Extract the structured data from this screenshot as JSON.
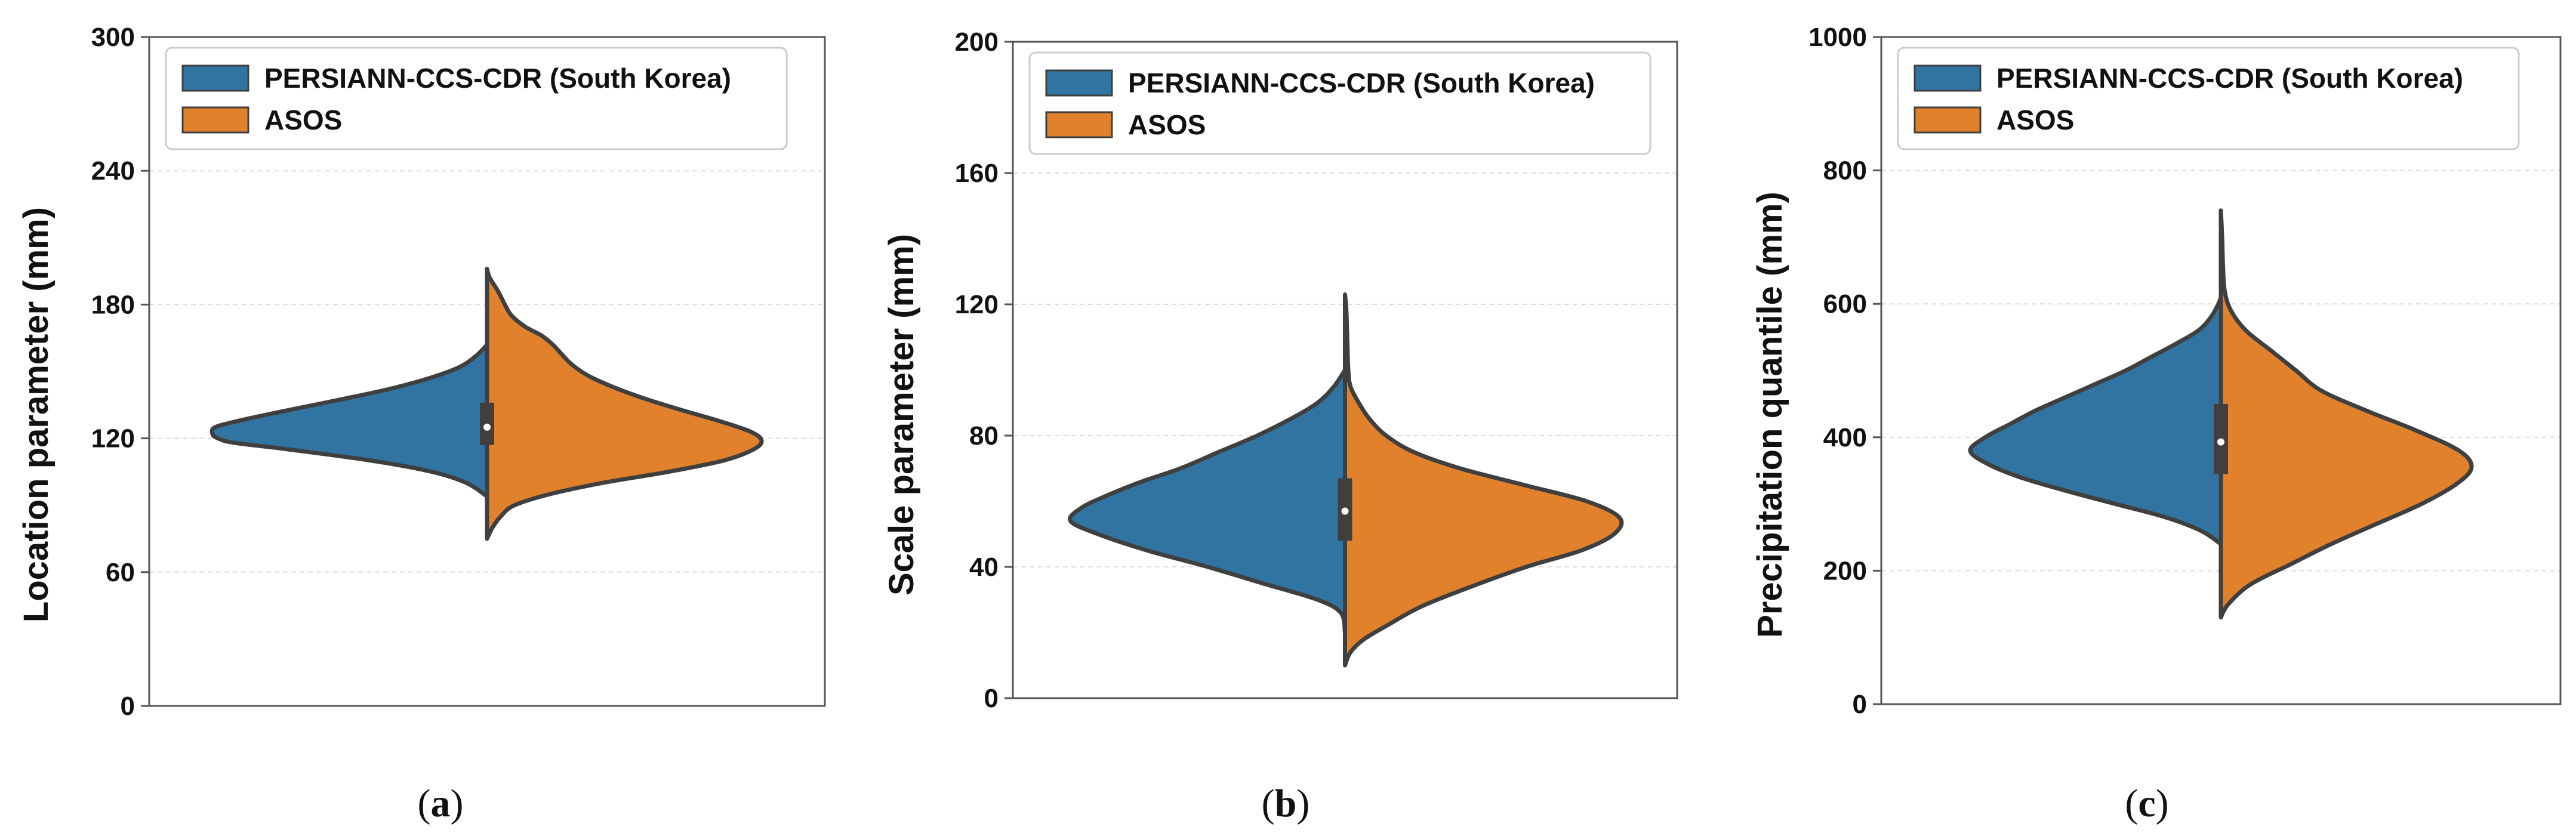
{
  "colors": {
    "series_a": "#3274a1",
    "series_b": "#e1812c",
    "outline": "#3f3f3f",
    "grid": "#dddddd",
    "frame": "#555555"
  },
  "chart_data": [
    {
      "type": "violin",
      "split": true,
      "caption": {
        "open": "(",
        "letter": "a",
        "close": ")"
      },
      "ylabel": "Location parameter (mm)",
      "ylim": [
        0,
        300
      ],
      "yticks": [
        0,
        60,
        120,
        180,
        240,
        300
      ],
      "yticklabels": [
        "0",
        "60",
        "120",
        "180",
        "240",
        "300"
      ],
      "grid": true,
      "legend_position": "top-left",
      "series": [
        {
          "name": "PERSIANN-CCS-CDR (South Korea)",
          "side": "left",
          "range": [
            94,
            162
          ],
          "density_profile": [
            [
              94,
              0
            ],
            [
              100,
              0.075
            ],
            [
              105,
              0.2
            ],
            [
              110,
              0.42
            ],
            [
              115,
              0.72
            ],
            [
              118,
              0.92
            ],
            [
              120,
              0.98
            ],
            [
              122,
              1.0
            ],
            [
              125,
              0.99
            ],
            [
              128,
              0.9
            ],
            [
              132,
              0.75
            ],
            [
              137,
              0.55
            ],
            [
              142,
              0.36
            ],
            [
              147,
              0.21
            ],
            [
              152,
              0.1
            ],
            [
              157,
              0.04
            ],
            [
              162,
              0
            ]
          ]
        },
        {
          "name": "ASOS",
          "side": "right",
          "range": [
            75,
            196
          ],
          "density_profile": [
            [
              75,
              0
            ],
            [
              80,
              0.02
            ],
            [
              85,
              0.05
            ],
            [
              90,
              0.1
            ],
            [
              95,
              0.23
            ],
            [
              100,
              0.42
            ],
            [
              105,
              0.66
            ],
            [
              110,
              0.86
            ],
            [
              115,
              0.97
            ],
            [
              119,
              1.0
            ],
            [
              123,
              0.96
            ],
            [
              128,
              0.84
            ],
            [
              133,
              0.7
            ],
            [
              138,
              0.57
            ],
            [
              143,
              0.46
            ],
            [
              148,
              0.37
            ],
            [
              153,
              0.31
            ],
            [
              158,
              0.27
            ],
            [
              162,
              0.24
            ],
            [
              166,
              0.2
            ],
            [
              170,
              0.14
            ],
            [
              175,
              0.09
            ],
            [
              180,
              0.065
            ],
            [
              186,
              0.04
            ],
            [
              192,
              0.01
            ],
            [
              196,
              0
            ]
          ]
        }
      ],
      "box": {
        "q1": 117,
        "median": 125,
        "q3": 136,
        "whisker_low": 113,
        "whisker_high": 138
      }
    },
    {
      "type": "violin",
      "split": true,
      "caption": {
        "open": "(",
        "letter": "b",
        "close": ")"
      },
      "ylabel": "Scale parameter (mm)",
      "ylim": [
        0,
        200
      ],
      "yticks": [
        0,
        40,
        80,
        120,
        160,
        200
      ],
      "yticklabels": [
        "0",
        "40",
        "80",
        "120",
        "160",
        "200"
      ],
      "grid": true,
      "legend_position": "top-left",
      "series": [
        {
          "name": "PERSIANN-CCS-CDR (South Korea)",
          "side": "left",
          "range": [
            20,
            100
          ],
          "density_profile": [
            [
              20,
              0
            ],
            [
              26,
              0.015
            ],
            [
              30,
              0.1
            ],
            [
              35,
              0.3
            ],
            [
              40,
              0.5
            ],
            [
              45,
              0.72
            ],
            [
              50,
              0.9
            ],
            [
              54,
              1.0
            ],
            [
              58,
              0.96
            ],
            [
              62,
              0.86
            ],
            [
              66,
              0.74
            ],
            [
              70,
              0.6
            ],
            [
              75,
              0.46
            ],
            [
              80,
              0.32
            ],
            [
              85,
              0.2
            ],
            [
              90,
              0.1
            ],
            [
              95,
              0.04
            ],
            [
              100,
              0
            ]
          ]
        },
        {
          "name": "ASOS",
          "side": "right",
          "range": [
            10,
            123
          ],
          "density_profile": [
            [
              10,
              0
            ],
            [
              14,
              0.02
            ],
            [
              18,
              0.07
            ],
            [
              22,
              0.15
            ],
            [
              28,
              0.28
            ],
            [
              34,
              0.46
            ],
            [
              40,
              0.66
            ],
            [
              45,
              0.86
            ],
            [
              50,
              0.98
            ],
            [
              55,
              1.0
            ],
            [
              60,
              0.88
            ],
            [
              65,
              0.65
            ],
            [
              70,
              0.42
            ],
            [
              75,
              0.25
            ],
            [
              80,
              0.15
            ],
            [
              85,
              0.09
            ],
            [
              90,
              0.05
            ],
            [
              95,
              0.02
            ],
            [
              100,
              0.012
            ],
            [
              110,
              0.008
            ],
            [
              118,
              0.005
            ],
            [
              123,
              0
            ]
          ]
        }
      ],
      "box": {
        "q1": 48,
        "median": 57,
        "q3": 67,
        "whisker_low": 40,
        "whisker_high": 70
      }
    },
    {
      "type": "violin",
      "split": true,
      "caption": {
        "open": "(",
        "letter": "c",
        "close": ")"
      },
      "ylabel": "Precipitation quantile (mm)",
      "ylim": [
        0,
        1000
      ],
      "yticks": [
        0,
        200,
        400,
        600,
        800,
        1000
      ],
      "yticklabels": [
        "0",
        "200",
        "400",
        "600",
        "800",
        "1000"
      ],
      "grid": true,
      "legend_position": "top-left",
      "series": [
        {
          "name": "PERSIANN-CCS-CDR (South Korea)",
          "side": "left",
          "range": [
            240,
            610
          ],
          "density_profile": [
            [
              240,
              0
            ],
            [
              260,
              0.08
            ],
            [
              280,
              0.22
            ],
            [
              300,
              0.42
            ],
            [
              320,
              0.62
            ],
            [
              340,
              0.8
            ],
            [
              360,
              0.93
            ],
            [
              380,
              1.0
            ],
            [
              400,
              0.94
            ],
            [
              420,
              0.84
            ],
            [
              440,
              0.74
            ],
            [
              460,
              0.62
            ],
            [
              480,
              0.5
            ],
            [
              500,
              0.38
            ],
            [
              520,
              0.28
            ],
            [
              540,
              0.18
            ],
            [
              560,
              0.09
            ],
            [
              580,
              0.04
            ],
            [
              600,
              0.01
            ],
            [
              610,
              0
            ]
          ]
        },
        {
          "name": "ASOS",
          "side": "right",
          "range": [
            130,
            740
          ],
          "density_profile": [
            [
              130,
              0
            ],
            [
              150,
              0.03
            ],
            [
              180,
              0.12
            ],
            [
              210,
              0.28
            ],
            [
              240,
              0.44
            ],
            [
              270,
              0.62
            ],
            [
              300,
              0.8
            ],
            [
              330,
              0.94
            ],
            [
              355,
              1.0
            ],
            [
              380,
              0.95
            ],
            [
              410,
              0.78
            ],
            [
              440,
              0.58
            ],
            [
              470,
              0.4
            ],
            [
              500,
              0.3
            ],
            [
              530,
              0.2
            ],
            [
              560,
              0.1
            ],
            [
              590,
              0.04
            ],
            [
              620,
              0.015
            ],
            [
              660,
              0.008
            ],
            [
              700,
              0.005
            ],
            [
              740,
              0
            ]
          ]
        }
      ],
      "box": {
        "q1": 345,
        "median": 393,
        "q3": 450,
        "whisker_low": 310,
        "whisker_high": 470
      }
    }
  ]
}
